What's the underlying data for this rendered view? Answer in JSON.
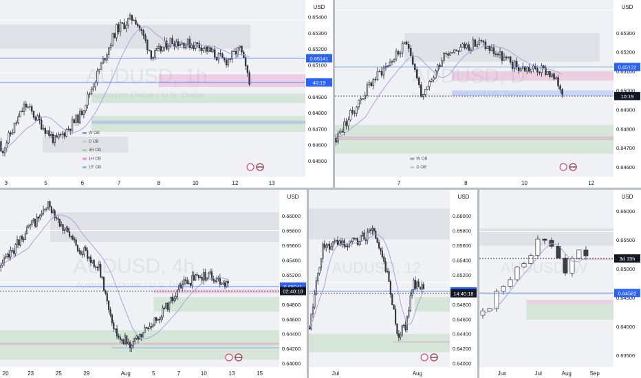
{
  "chart_data": [
    {
      "type": "candlestick",
      "symbol": "AUDUSD",
      "timeframe": "1h",
      "watermark_symbol": "AUDUSD, 1h",
      "watermark_name": "Australian Dollar / U.S. Dollar",
      "currency": "USD",
      "ylim": [
        0.644,
        0.6548
      ],
      "yticks": [
        "0.65400",
        "0.65300",
        "0.65200",
        "0.65100",
        "0.65000",
        "0.64900",
        "0.64800",
        "0.64700",
        "0.64600",
        "0.64500"
      ],
      "xticks": [
        {
          "label": "3",
          "pos": 0.02
        },
        {
          "label": "5",
          "pos": 0.15
        },
        {
          "label": "6",
          "pos": 0.27
        },
        {
          "label": "7",
          "pos": 0.39
        },
        {
          "label": "8",
          "pos": 0.52
        },
        {
          "label": "10",
          "pos": 0.64
        },
        {
          "label": "12",
          "pos": 0.77
        },
        {
          "label": "13",
          "pos": 0.89
        }
      ],
      "price_labels": [
        {
          "text": "0.65141",
          "value": 0.65141,
          "color": "#2962ff"
        },
        {
          "text": "40:19",
          "value": 0.6499,
          "color": "#2962ff"
        }
      ],
      "legend": [
        {
          "label": "W OB",
          "color": "#9aa0ab"
        },
        {
          "label": "D OB",
          "color": "#c8ccd4"
        },
        {
          "label": "4H OB",
          "color": "#9fd7a6"
        },
        {
          "label": "1H OB",
          "color": "#e58fc7"
        },
        {
          "label": "15' OB",
          "color": "#8ab4ff"
        }
      ],
      "seed": 11,
      "n": 130,
      "start": 0.6462,
      "path": [
        [
          0,
          0.6455
        ],
        [
          0.08,
          0.6485
        ],
        [
          0.18,
          0.6462
        ],
        [
          0.26,
          0.6478
        ],
        [
          0.38,
          0.6532
        ],
        [
          0.44,
          0.654
        ],
        [
          0.5,
          0.6515
        ],
        [
          0.56,
          0.6525
        ],
        [
          0.66,
          0.6522
        ],
        [
          0.74,
          0.6512
        ],
        [
          0.79,
          0.652
        ],
        [
          0.82,
          0.6498
        ]
      ],
      "zones": [
        {
          "y0": 0.652,
          "y1": 0.6535,
          "x0": 0.0,
          "x1": 0.82,
          "kind": "grey"
        },
        {
          "y0": 0.6496,
          "y1": 0.6504,
          "x0": 0.52,
          "x1": 1.0,
          "kind": "pink"
        },
        {
          "y0": 0.6486,
          "y1": 0.6492,
          "x0": 0.3,
          "x1": 1.0,
          "kind": "green"
        },
        {
          "y0": 0.6468,
          "y1": 0.6478,
          "x0": 0.3,
          "x1": 1.0,
          "kind": "green"
        },
        {
          "y0": 0.6473,
          "y1": 0.6475,
          "x0": 0.3,
          "x1": 1.0,
          "kind": "blue"
        },
        {
          "y0": 0.6455,
          "y1": 0.6465,
          "x0": 0.14,
          "x1": 0.42,
          "kind": "grey"
        }
      ],
      "line_levels": [
        0.6538,
        0.6514,
        0.6505
      ]
    },
    {
      "type": "candlestick",
      "symbol": "AUDUSD",
      "timeframe": "D",
      "watermark_symbol": "AUDUSD, D",
      "watermark_name": "Australian Dollar / U.S. Dollar",
      "currency": "USD",
      "ylim": [
        0.6455,
        0.6545
      ],
      "yticks": [
        "0.65400",
        "0.65300",
        "0.65200",
        "0.65100",
        "0.65000",
        "0.64900",
        "0.64800",
        "0.64700",
        "0.64600"
      ],
      "xticks": [
        {
          "label": "7",
          "pos": 0.23
        },
        {
          "label": "8",
          "pos": 0.47
        },
        {
          "label": "10",
          "pos": 0.68
        },
        {
          "label": "12",
          "pos": 0.92
        }
      ],
      "price_labels": [
        {
          "text": "0.65122",
          "value": 0.65122,
          "color": "#2962ff"
        },
        {
          "text": "10:19",
          "value": 0.6497,
          "color": "#131722"
        }
      ],
      "legend": [
        {
          "label": "W OB",
          "color": "#9aa0ab"
        },
        {
          "label": "D OB",
          "color": "#c8ccd4"
        }
      ],
      "seed": 23,
      "n": 110,
      "start": 0.6475,
      "path": [
        [
          0,
          0.6475
        ],
        [
          0.15,
          0.6505
        ],
        [
          0.3,
          0.6525
        ],
        [
          0.36,
          0.6495
        ],
        [
          0.45,
          0.652
        ],
        [
          0.6,
          0.6525
        ],
        [
          0.75,
          0.6512
        ],
        [
          0.88,
          0.651
        ],
        [
          0.94,
          0.65
        ]
      ],
      "zones": [
        {
          "y0": 0.6515,
          "y1": 0.653,
          "x0": 0.25,
          "x1": 0.95,
          "kind": "grey"
        },
        {
          "y0": 0.6497,
          "y1": 0.65,
          "x0": 0.42,
          "x1": 1.0,
          "kind": "blue"
        },
        {
          "y0": 0.6505,
          "y1": 0.651,
          "x0": 0.42,
          "x1": 1.0,
          "kind": "pink"
        },
        {
          "y0": 0.6467,
          "y1": 0.6482,
          "x0": 0.0,
          "x1": 1.0,
          "kind": "green"
        },
        {
          "y0": 0.6474,
          "y1": 0.6476,
          "x0": 0.0,
          "x1": 1.0,
          "kind": "pink"
        }
      ],
      "line_levels": [
        0.6542,
        0.6512
      ]
    },
    {
      "type": "candlestick",
      "symbol": "AUDUSD",
      "timeframe": "4h",
      "watermark_symbol": "AUDUSD, 4h",
      "watermark_name": "Australian Dollar / U.S. Dollar",
      "currency": "USD",
      "ylim": [
        0.6395,
        0.663
      ],
      "yticks": [
        "0.66200",
        "0.66000",
        "0.65800",
        "0.65600",
        "0.65400",
        "0.65200",
        "0.65000",
        "0.64800",
        "0.64600",
        "0.64400",
        "0.64200",
        "0.64000"
      ],
      "xticks": [
        {
          "label": "20",
          "pos": 0.02
        },
        {
          "label": "23",
          "pos": 0.11
        },
        {
          "label": "25",
          "pos": 0.21
        },
        {
          "label": "29",
          "pos": 0.31
        },
        {
          "label": "Aug",
          "pos": 0.45
        },
        {
          "label": "5",
          "pos": 0.55
        },
        {
          "label": "7",
          "pos": 0.64
        },
        {
          "label": "10",
          "pos": 0.73
        },
        {
          "label": "13",
          "pos": 0.83
        },
        {
          "label": "15",
          "pos": 0.93
        }
      ],
      "price_labels": [
        {
          "text": "0.65041",
          "value": 0.65041,
          "color": "#2962ff"
        },
        {
          "text": "02:40:18",
          "value": 0.6498,
          "color": "#131722"
        }
      ],
      "legend": [],
      "seed": 37,
      "n": 140,
      "start": 0.653,
      "path": [
        [
          0,
          0.653
        ],
        [
          0.08,
          0.6575
        ],
        [
          0.17,
          0.6615
        ],
        [
          0.24,
          0.657
        ],
        [
          0.34,
          0.653
        ],
        [
          0.4,
          0.644
        ],
        [
          0.46,
          0.6425
        ],
        [
          0.56,
          0.647
        ],
        [
          0.64,
          0.651
        ],
        [
          0.72,
          0.652
        ],
        [
          0.79,
          0.6505
        ]
      ],
      "zones": [
        {
          "y0": 0.6565,
          "y1": 0.6605,
          "x0": 0.18,
          "x1": 1.0,
          "kind": "grey"
        },
        {
          "y0": 0.6495,
          "y1": 0.65,
          "x0": 0.55,
          "x1": 1.0,
          "kind": "pink"
        },
        {
          "y0": 0.647,
          "y1": 0.649,
          "x0": 0.55,
          "x1": 1.0,
          "kind": "green"
        },
        {
          "y0": 0.6405,
          "y1": 0.6445,
          "x0": 0.0,
          "x1": 1.0,
          "kind": "green"
        },
        {
          "y0": 0.6425,
          "y1": 0.6428,
          "x0": 0.0,
          "x1": 1.0,
          "kind": "pink"
        },
        {
          "y0": 0.642,
          "y1": 0.6422,
          "x0": 0.4,
          "x1": 1.0,
          "kind": "blue"
        }
      ],
      "line_levels": [
        0.658,
        0.651
      ]
    },
    {
      "type": "candlestick",
      "symbol": "AUDUSD",
      "timeframe": "12h",
      "watermark_symbol": "AUDUSD, 12",
      "watermark_name": "",
      "currency": "USD",
      "ylim": [
        0.6395,
        0.663
      ],
      "yticks": [
        "0.66200",
        "0.66000",
        "0.65800",
        "0.65600",
        "0.65400",
        "0.65200",
        "0.65000",
        "0.64800",
        "0.64600",
        "0.64400",
        "0.64200",
        "0.64000"
      ],
      "xticks": [
        {
          "label": "Jul",
          "pos": 0.19
        },
        {
          "label": "Aug",
          "pos": 0.77
        }
      ],
      "price_labels": [
        {
          "text": "0.64977",
          "value": 0.64977,
          "color": "#2962ff"
        },
        {
          "text": "14:40:18",
          "value": 0.6495,
          "color": "#131722"
        }
      ],
      "legend": [],
      "seed": 51,
      "n": 70,
      "start": 0.645,
      "path": [
        [
          0,
          0.645
        ],
        [
          0.1,
          0.656
        ],
        [
          0.3,
          0.656
        ],
        [
          0.5,
          0.658
        ],
        [
          0.6,
          0.652
        ],
        [
          0.68,
          0.644
        ],
        [
          0.74,
          0.645
        ],
        [
          0.8,
          0.651
        ],
        [
          0.88,
          0.65
        ]
      ],
      "zones": [
        {
          "y0": 0.6568,
          "y1": 0.661,
          "x0": 0.0,
          "x1": 1.0,
          "kind": "grey"
        },
        {
          "y0": 0.647,
          "y1": 0.649,
          "x0": 0.75,
          "x1": 1.0,
          "kind": "green"
        },
        {
          "y0": 0.6415,
          "y1": 0.644,
          "x0": 0.0,
          "x1": 1.0,
          "kind": "green"
        },
        {
          "y0": 0.6428,
          "y1": 0.643,
          "x0": 0.6,
          "x1": 1.0,
          "kind": "pink"
        }
      ],
      "line_levels": [
        0.651
      ]
    },
    {
      "type": "candlestick",
      "symbol": "AUDUSD",
      "timeframe": "W",
      "watermark_symbol": "AUDUSD, W",
      "watermark_name": "",
      "currency": "USD",
      "ylim": [
        0.633,
        0.663
      ],
      "yticks": [
        "0.66000",
        "0.65500",
        "0.65000",
        "0.64500",
        "0.64000",
        "0.63500"
      ],
      "xticks": [
        {
          "label": "Jun",
          "pos": 0.17
        },
        {
          "label": "Jul",
          "pos": 0.44
        },
        {
          "label": "Aug",
          "pos": 0.65
        },
        {
          "label": "Sep",
          "pos": 0.86
        }
      ],
      "price_labels": [
        {
          "text": "3d 15h",
          "value": 0.6518,
          "color": "#131722"
        },
        {
          "text": "0.64582",
          "value": 0.64582,
          "color": "#2962ff"
        }
      ],
      "legend": [],
      "seed": 67,
      "n": 16,
      "start": 0.642,
      "path": [
        [
          0,
          0.642
        ],
        [
          0.2,
          0.648
        ],
        [
          0.4,
          0.653
        ],
        [
          0.55,
          0.656
        ],
        [
          0.7,
          0.65
        ],
        [
          0.82,
          0.6525
        ],
        [
          0.88,
          0.6515
        ]
      ],
      "zones": [
        {
          "y0": 0.654,
          "y1": 0.657,
          "x0": 0.0,
          "x1": 1.0,
          "kind": "grey"
        },
        {
          "y0": 0.6515,
          "y1": 0.6518,
          "x0": 0.6,
          "x1": 1.0,
          "kind": "pink"
        },
        {
          "y0": 0.6412,
          "y1": 0.644,
          "x0": 0.35,
          "x1": 1.0,
          "kind": "green"
        },
        {
          "y0": 0.644,
          "y1": 0.6446,
          "x0": 0.35,
          "x1": 1.0,
          "kind": "pink"
        }
      ],
      "line_levels": [
        0.6565
      ]
    }
  ]
}
